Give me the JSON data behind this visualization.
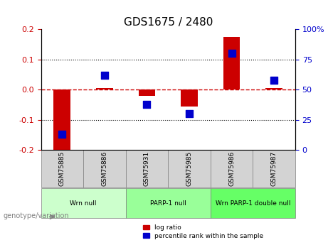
{
  "title": "GDS1675 / 2480",
  "samples": [
    "GSM75885",
    "GSM75886",
    "GSM75931",
    "GSM75985",
    "GSM75986",
    "GSM75987"
  ],
  "log_ratio": [
    -0.21,
    0.005,
    -0.02,
    -0.055,
    0.175,
    0.005
  ],
  "percentile_rank": [
    13,
    62,
    38,
    30,
    80,
    58
  ],
  "ylim_left": [
    -0.2,
    0.2
  ],
  "ylim_right": [
    0,
    100
  ],
  "yticks_left": [
    -0.2,
    -0.1,
    0.0,
    0.1,
    0.2
  ],
  "yticks_right": [
    0,
    25,
    50,
    75,
    100
  ],
  "ytick_labels_right": [
    "0",
    "25",
    "50",
    "75",
    "100%"
  ],
  "bar_color": "#cc0000",
  "dot_color": "#0000cc",
  "zero_line_color": "#cc0000",
  "groups": [
    {
      "label": "Wrn null",
      "samples": [
        "GSM75885",
        "GSM75886"
      ],
      "color": "#ccffcc"
    },
    {
      "label": "PARP-1 null",
      "samples": [
        "GSM75931",
        "GSM75985"
      ],
      "color": "#99ff99"
    },
    {
      "label": "Wrn PARP-1 double null",
      "samples": [
        "GSM75986",
        "GSM75987"
      ],
      "color": "#66ff66"
    }
  ],
  "legend_items": [
    {
      "label": "log ratio",
      "color": "#cc0000"
    },
    {
      "label": "percentile rank within the sample",
      "color": "#0000cc"
    }
  ],
  "genotype_label": "genotype/variation",
  "bar_width": 0.4,
  "dot_size": 60
}
